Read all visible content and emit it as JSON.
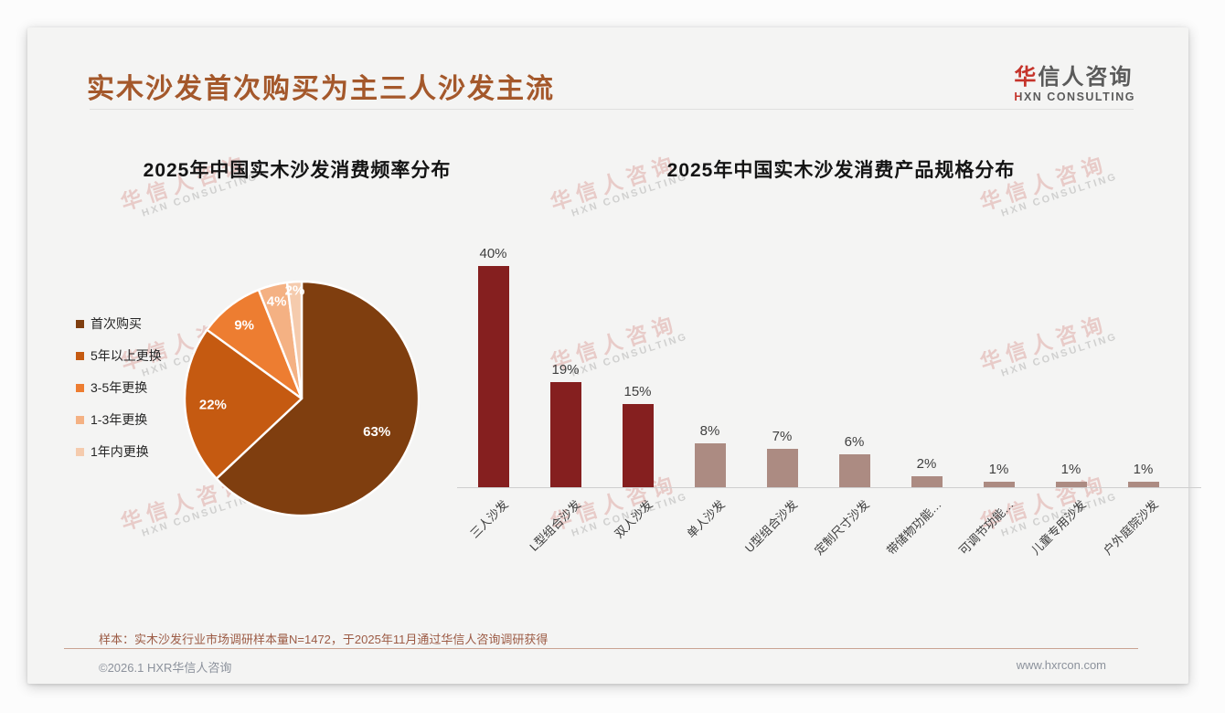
{
  "header": {
    "title": "实木沙发首次购买为主三人沙发主流",
    "logo": {
      "zh_first": "华",
      "zh_rest": "信人咨询",
      "en": "HXN CONSULTING"
    }
  },
  "watermark": {
    "zh": "华信人咨询",
    "en": "HXN CONSULTING"
  },
  "colors": {
    "title_brown": "#a4582b",
    "logo_red": "#c5342b",
    "logo_gray": "#5a5a5a",
    "bar_primary": "#851f1f",
    "bar_muted": "#ac8b82"
  },
  "chart_data": [
    {
      "type": "pie",
      "title": "2025年中国实木沙发消费频率分布",
      "labels": [
        "首次购买",
        "5年以上更换",
        "3-5年更换",
        "1-3年更换",
        "1年内更换"
      ],
      "values": [
        63,
        22,
        9,
        4,
        2
      ],
      "value_labels": [
        "63%",
        "22%",
        "9%",
        "4%",
        "2%"
      ],
      "colors": [
        "#7f3e0f",
        "#c55a11",
        "#ed7d31",
        "#f4b183",
        "#f5cbad"
      ],
      "start_angle_deg": 0,
      "direction": "clockwise",
      "legend_position": "left",
      "label_radius_frac": [
        0.7,
        0.76,
        0.8,
        0.86,
        0.93
      ]
    },
    {
      "type": "bar",
      "title": "2025年中国实木沙发消费产品规格分布",
      "categories": [
        "三人沙发",
        "L型组合沙发",
        "双人沙发",
        "单人沙发",
        "U型组合沙发",
        "定制尺寸沙发",
        "带储物功能…",
        "可调节功能…",
        "儿童专用沙发",
        "户外庭院沙发"
      ],
      "values": [
        40,
        19,
        15,
        8,
        7,
        6,
        2,
        1,
        1,
        1
      ],
      "value_labels": [
        "40%",
        "19%",
        "15%",
        "8%",
        "7%",
        "6%",
        "2%",
        "1%",
        "1%",
        "1%"
      ],
      "bar_colors": [
        "#851f1f",
        "#851f1f",
        "#851f1f",
        "#ac8b82",
        "#ac8b82",
        "#ac8b82",
        "#ac8b82",
        "#ac8b82",
        "#ac8b82",
        "#ac8b82"
      ],
      "ylim": [
        0,
        44
      ],
      "grid": false,
      "legend_position": "none"
    }
  ],
  "footer": {
    "note": "样本：实木沙发行业市场调研样本量N=1472，于2025年11月通过华信人咨询调研获得",
    "copyright": "©2026.1 HXR华信人咨询",
    "website": "www.hxrcon.com"
  }
}
